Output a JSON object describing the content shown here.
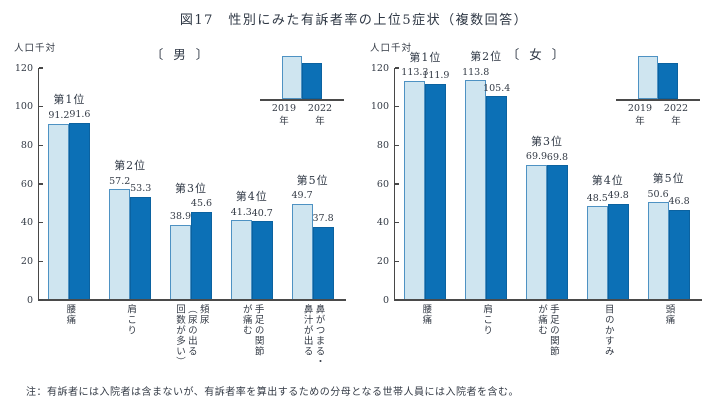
{
  "title": "図17　性別にみた有訴者率の上位5症状（複数回答）",
  "note": "注：有訴者には入院者は含まないが、有訴者率を算出するための分母となる世帯人員には入院者を含む。",
  "colors": {
    "bar_2019_fill": "#cfe5f0",
    "bar_2019_border": "#4e92c3",
    "bar_2022_fill": "#0c70b6",
    "axis": "#474747",
    "text": "#333a45"
  },
  "legend": {
    "years": [
      {
        "year": "2019",
        "unit": "年"
      },
      {
        "year": "2022",
        "unit": "年"
      }
    ]
  },
  "chart_data": {
    "type": "bar",
    "title": "図17　性別にみた有訴者率の上位5症状（複数回答）",
    "unit_label": "人口千対",
    "ylabel": "人口千対",
    "ylim": [
      0,
      120
    ],
    "yticks": [
      0,
      20,
      40,
      60,
      80,
      100,
      120
    ],
    "series_names": [
      "2019年",
      "2022年"
    ],
    "legend_position": "top-right",
    "grid": false,
    "panels": [
      {
        "id": "male",
        "header": "〔 男 〕",
        "groups": [
          {
            "rank": "第1位",
            "category": "腰痛",
            "values": [
              91.2,
              91.6
            ]
          },
          {
            "rank": "第2位",
            "category": "肩こり",
            "values": [
              57.2,
              53.3
            ]
          },
          {
            "rank": "第3位",
            "category": "頻尿\n（尿の出る\n回数が多い）",
            "values": [
              38.9,
              45.6
            ]
          },
          {
            "rank": "第4位",
            "category": "手足の関節\nが痛む",
            "values": [
              41.3,
              40.7
            ]
          },
          {
            "rank": "第5位",
            "category": "鼻がつまる・\n鼻汁が出る",
            "values": [
              49.7,
              37.8
            ]
          }
        ]
      },
      {
        "id": "female",
        "header": "〔 女 〕",
        "groups": [
          {
            "rank": "第1位",
            "category": "腰痛",
            "values": [
              113.3,
              111.9
            ]
          },
          {
            "rank": "第2位",
            "category": "肩こり",
            "values": [
              113.8,
              105.4
            ]
          },
          {
            "rank": "第3位",
            "category": "手足の関節\nが痛む",
            "values": [
              69.9,
              69.8
            ]
          },
          {
            "rank": "第4位",
            "category": "目のかすみ",
            "values": [
              48.5,
              49.8
            ]
          },
          {
            "rank": "第5位",
            "category": "頭痛",
            "values": [
              50.6,
              46.8
            ]
          }
        ]
      }
    ]
  }
}
